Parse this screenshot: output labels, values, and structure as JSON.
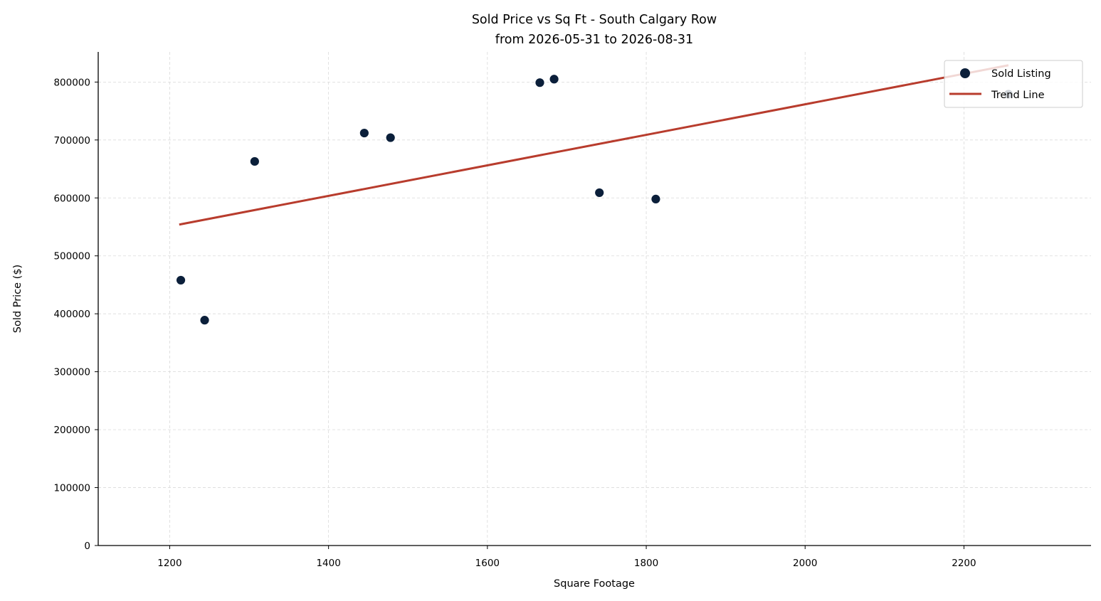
{
  "chart_data": {
    "type": "scatter",
    "title": "Sold Price vs Sq Ft - South Calgary Row",
    "subtitle": "from 2026-05-31 to 2026-08-31",
    "xlabel": "Square Footage",
    "ylabel": "Sold Price ($)",
    "xlim": [
      1110,
      2360
    ],
    "ylim": [
      0,
      852000
    ],
    "xticks": [
      1200,
      1400,
      1600,
      1800,
      2000,
      2200
    ],
    "yticks": [
      0,
      100000,
      200000,
      300000,
      400000,
      500000,
      600000,
      700000,
      800000
    ],
    "grid": true,
    "legend_position": "top-right",
    "series": [
      {
        "name": "Sold Listing",
        "kind": "scatter",
        "color": "#0b1f3a",
        "x": [
          1214,
          1244,
          1307,
          1445,
          1478,
          1666,
          1684,
          1741,
          1812,
          2256
        ],
        "y": [
          458000,
          389000,
          663000,
          712000,
          704000,
          799000,
          805000,
          609000,
          598000,
          779000
        ]
      },
      {
        "name": "Trend Line",
        "kind": "line",
        "color": "#b83c2d",
        "x": [
          1212,
          2256
        ],
        "y": [
          554000,
          829000
        ]
      }
    ]
  }
}
